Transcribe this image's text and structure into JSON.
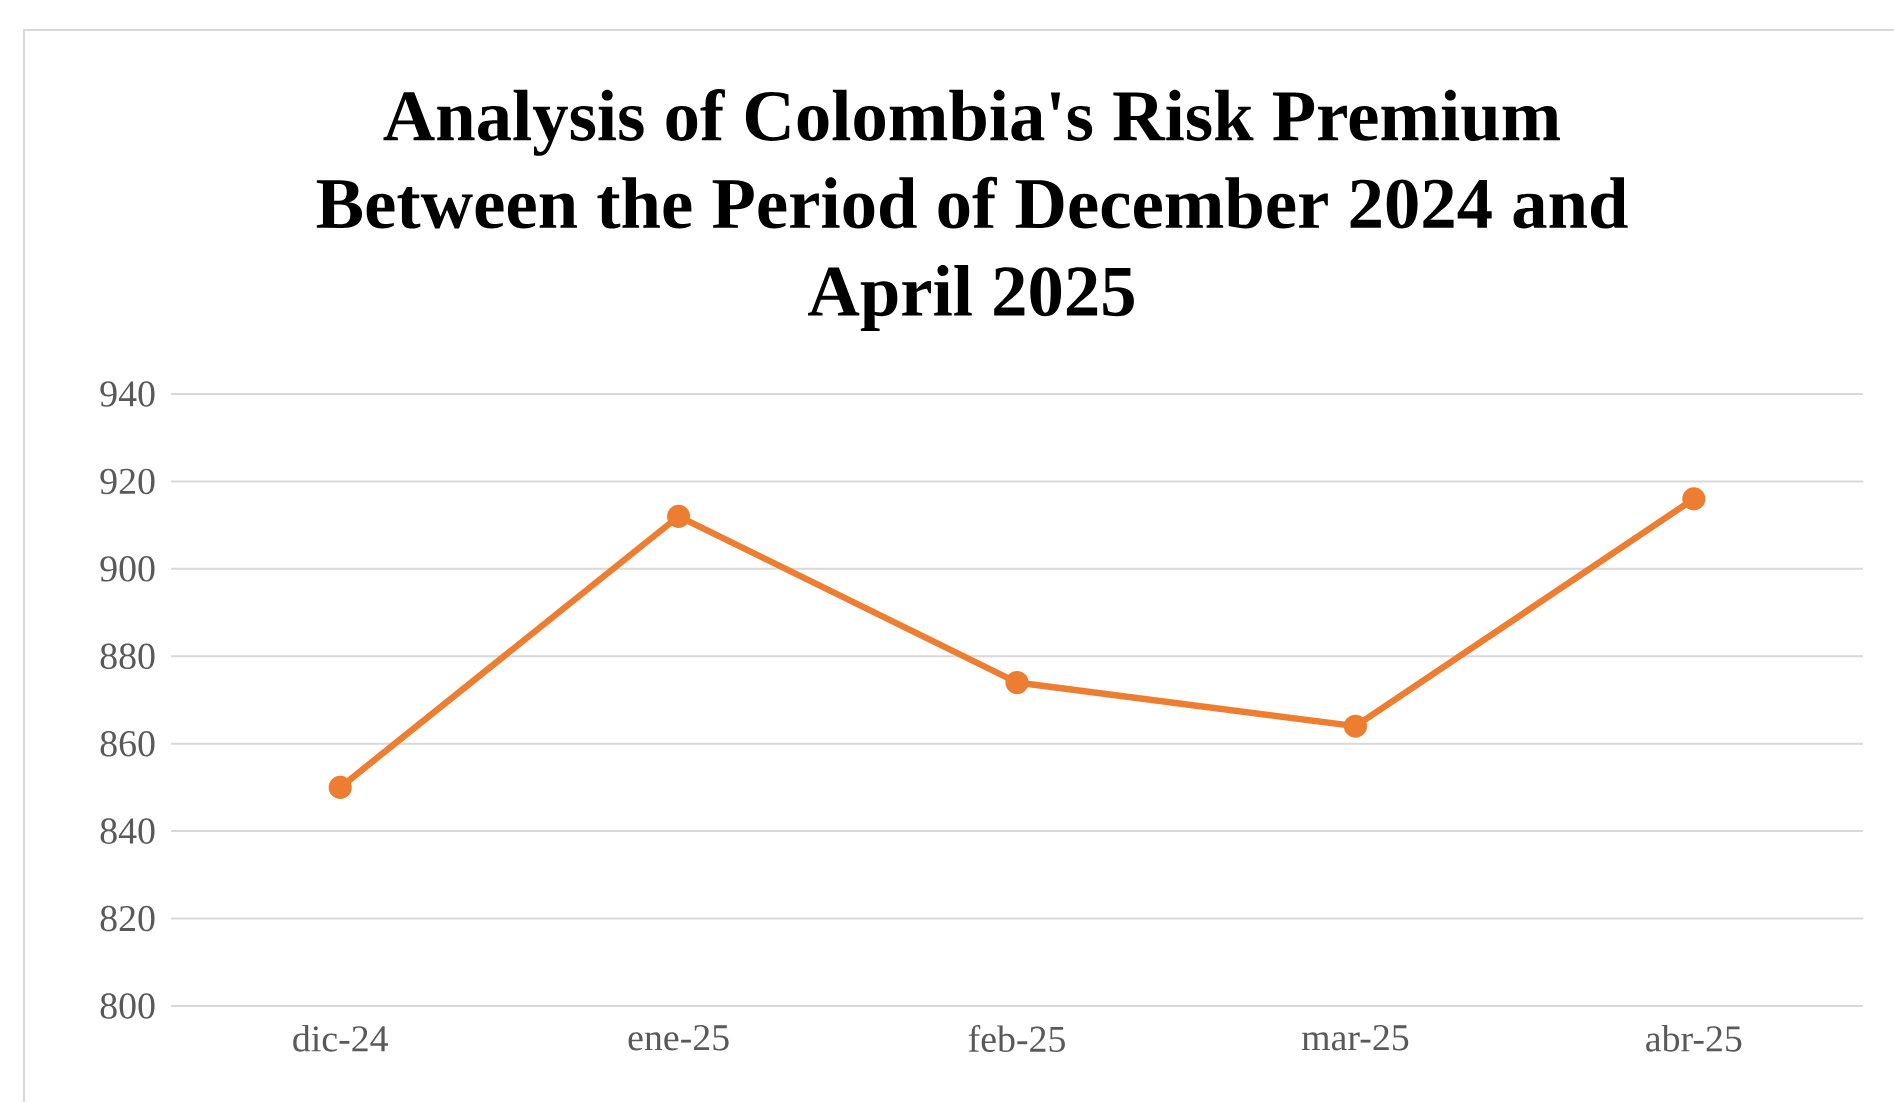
{
  "chart_data": {
    "type": "line",
    "title": "Analysis of Colombia's Risk Premium Between the Period of December 2024 and April 2025",
    "categories": [
      "dic-24",
      "ene-25",
      "feb-25",
      "mar-25",
      "abr-25"
    ],
    "series": [
      {
        "color": "#ed7d31",
        "values": [
          850,
          912,
          874,
          864,
          916
        ]
      }
    ],
    "ylim": [
      800,
      940
    ],
    "yticks": [
      800,
      820,
      840,
      860,
      880,
      900,
      920,
      940
    ],
    "grid": "y",
    "marker": "circle",
    "line_style": "solid"
  }
}
